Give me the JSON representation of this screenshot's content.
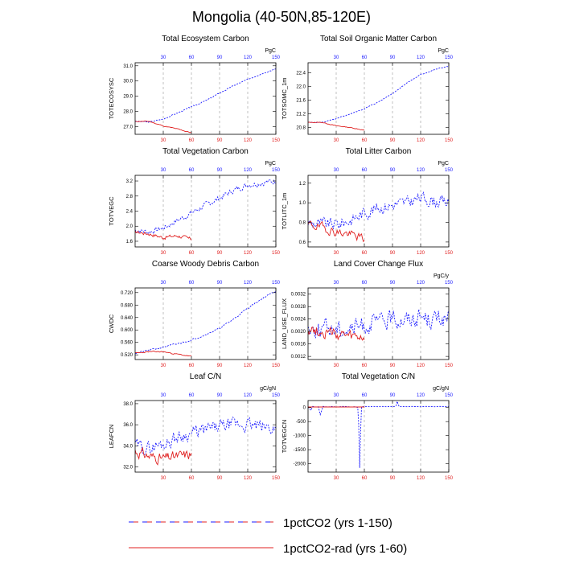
{
  "figure": {
    "title": "Mongolia (40-50N,85-120E)",
    "legend": [
      {
        "label": "1pctCO2 (yrs 1-150)",
        "color": "#1a1aff",
        "style": "dashed"
      },
      {
        "label": "1pctCO2-rad (yrs 1-60)",
        "color": "#e02020",
        "style": "solid"
      }
    ]
  },
  "chart_data": [
    {
      "type": "line",
      "title": "Total Ecosystem Carbon",
      "ylabel": "TOTECOSYSC",
      "unit": "PgC",
      "xlim": [
        0,
        150
      ],
      "ylim": [
        26.5,
        31.2
      ],
      "yticks": [
        27.0,
        28.0,
        29.0,
        30.0,
        31.0
      ],
      "ytick_fmt": 1,
      "xticks_bottom": [
        30,
        60,
        90,
        120,
        150
      ],
      "xticks_top": [
        30,
        60,
        90,
        120,
        150
      ],
      "grid_x": [
        30,
        60,
        90,
        120
      ],
      "series": [
        {
          "color": "#1a1aff",
          "dash": "2,1.5",
          "noise": 0.06,
          "seed": 3,
          "x": [
            0,
            15,
            30,
            45,
            60,
            75,
            90,
            105,
            120,
            135,
            150
          ],
          "y": [
            27.35,
            27.3,
            27.5,
            27.9,
            28.3,
            28.7,
            29.2,
            29.7,
            30.1,
            30.5,
            30.8
          ]
        },
        {
          "color": "#e02020",
          "dash": "",
          "noise": 0.05,
          "seed": 11,
          "x": [
            0,
            15,
            30,
            45,
            60
          ],
          "y": [
            27.35,
            27.35,
            27.05,
            26.85,
            26.6
          ]
        }
      ]
    },
    {
      "type": "line",
      "title": "Total Soil Organic Matter Carbon",
      "ylabel": "TOTSOMC_1m",
      "unit": "PgC",
      "xlim": [
        0,
        150
      ],
      "ylim": [
        20.6,
        22.7
      ],
      "yticks": [
        20.8,
        21.2,
        21.6,
        22.0,
        22.4
      ],
      "ytick_fmt": 1,
      "xticks_bottom": [
        30,
        60,
        90,
        120,
        150
      ],
      "xticks_top": [
        30,
        60,
        90,
        120,
        150
      ],
      "grid_x": [
        30,
        60,
        90,
        120
      ],
      "series": [
        {
          "color": "#1a1aff",
          "dash": "2,1.5",
          "noise": 0.02,
          "seed": 5,
          "x": [
            0,
            15,
            30,
            45,
            60,
            75,
            90,
            105,
            120,
            135,
            150
          ],
          "y": [
            20.95,
            20.95,
            21.05,
            21.2,
            21.35,
            21.55,
            21.8,
            22.1,
            22.35,
            22.5,
            22.6
          ]
        },
        {
          "color": "#e02020",
          "dash": "",
          "noise": 0.015,
          "seed": 13,
          "x": [
            0,
            15,
            30,
            45,
            60
          ],
          "y": [
            20.95,
            20.95,
            20.85,
            20.8,
            20.72
          ]
        }
      ]
    },
    {
      "type": "line",
      "title": "Total Vegetation Carbon",
      "ylabel": "TOTVEGC",
      "unit": "PgC",
      "xlim": [
        0,
        150
      ],
      "ylim": [
        1.45,
        3.35
      ],
      "yticks": [
        1.6,
        2.0,
        2.4,
        2.8,
        3.2
      ],
      "ytick_fmt": 1,
      "xticks_bottom": [
        30,
        60,
        90,
        120,
        150
      ],
      "xticks_top": [
        30,
        60,
        90,
        120,
        150
      ],
      "grid_x": [
        30,
        60,
        90,
        120
      ],
      "series": [
        {
          "color": "#1a1aff",
          "dash": "2,1.5",
          "noise": 0.12,
          "seed": 7,
          "x": [
            0,
            15,
            30,
            45,
            60,
            75,
            90,
            105,
            120,
            135,
            150
          ],
          "y": [
            1.9,
            1.85,
            1.95,
            2.15,
            2.35,
            2.55,
            2.75,
            2.95,
            3.1,
            3.15,
            3.2
          ]
        },
        {
          "color": "#e02020",
          "dash": "",
          "noise": 0.08,
          "seed": 17,
          "x": [
            0,
            15,
            30,
            45,
            60
          ],
          "y": [
            1.85,
            1.8,
            1.7,
            1.75,
            1.65
          ]
        }
      ]
    },
    {
      "type": "line",
      "title": "Total Litter Carbon",
      "ylabel": "TOTLITC_1m",
      "unit": "PgC",
      "xlim": [
        0,
        150
      ],
      "ylim": [
        0.55,
        1.28
      ],
      "yticks": [
        0.6,
        0.8,
        1.0,
        1.2
      ],
      "ytick_fmt": 1,
      "xticks_bottom": [
        30,
        60,
        90,
        120,
        150
      ],
      "xticks_top": [
        30,
        60,
        90,
        120,
        150
      ],
      "grid_x": [
        30,
        60,
        90,
        120
      ],
      "series": [
        {
          "color": "#1a1aff",
          "dash": "2,1.5",
          "noise": 0.1,
          "seed": 9,
          "x": [
            0,
            15,
            30,
            45,
            60,
            75,
            90,
            105,
            120,
            135,
            150
          ],
          "y": [
            0.8,
            0.78,
            0.78,
            0.82,
            0.9,
            0.95,
            0.98,
            1.0,
            1.05,
            1.02,
            1.0
          ]
        },
        {
          "color": "#e02020",
          "dash": "",
          "noise": 0.07,
          "seed": 19,
          "x": [
            0,
            15,
            30,
            45,
            60
          ],
          "y": [
            0.78,
            0.75,
            0.7,
            0.68,
            0.63
          ]
        }
      ]
    },
    {
      "type": "line",
      "title": "Coarse Woody Debris Carbon",
      "ylabel": "CWDC",
      "unit": "",
      "xlim": [
        0,
        150
      ],
      "ylim": [
        0.505,
        0.735
      ],
      "yticks": [
        0.52,
        0.56,
        0.6,
        0.64,
        0.68,
        0.72
      ],
      "ytick_fmt": 3,
      "xticks_bottom": [
        30,
        60,
        90,
        120,
        150
      ],
      "xticks_top": [
        30,
        60,
        90,
        120,
        150
      ],
      "grid_x": [
        30,
        60,
        90,
        120
      ],
      "series": [
        {
          "color": "#1a1aff",
          "dash": "2,1.5",
          "noise": 0.004,
          "seed": 21,
          "x": [
            0,
            15,
            30,
            45,
            60,
            75,
            90,
            105,
            120,
            135,
            150
          ],
          "y": [
            0.525,
            0.535,
            0.545,
            0.555,
            0.568,
            0.585,
            0.605,
            0.635,
            0.67,
            0.7,
            0.725
          ]
        },
        {
          "color": "#e02020",
          "dash": "",
          "noise": 0.003,
          "seed": 23,
          "x": [
            0,
            15,
            30,
            45,
            60
          ],
          "y": [
            0.525,
            0.53,
            0.53,
            0.522,
            0.515
          ]
        }
      ]
    },
    {
      "type": "line",
      "title": "Land Cover Change Flux",
      "ylabel": "LAND_USE_FLUX",
      "unit": "PgC/y",
      "xlim": [
        0,
        150
      ],
      "ylim": [
        0.0011,
        0.0034
      ],
      "yticks": [
        0.0012,
        0.0016,
        0.002,
        0.0024,
        0.0028,
        0.0032
      ],
      "ytick_fmt": 4,
      "xticks_bottom": [
        30,
        60,
        90,
        120,
        150
      ],
      "xticks_top": [
        30,
        60,
        90,
        120,
        150
      ],
      "grid_x": [
        30,
        60,
        90,
        120
      ],
      "series": [
        {
          "color": "#1a1aff",
          "dash": "2,1.5",
          "noise": 0.00045,
          "seed": 25,
          "x": [
            0,
            15,
            30,
            45,
            60,
            75,
            90,
            105,
            120,
            135,
            150
          ],
          "y": [
            0.0021,
            0.0021,
            0.0021,
            0.0021,
            0.0022,
            0.0023,
            0.0024,
            0.0024,
            0.0025,
            0.0024,
            0.0024
          ]
        },
        {
          "color": "#e02020",
          "dash": "",
          "noise": 0.0003,
          "seed": 27,
          "x": [
            0,
            15,
            30,
            45,
            60
          ],
          "y": [
            0.0021,
            0.002,
            0.0019,
            0.0018,
            0.0018
          ]
        }
      ]
    },
    {
      "type": "line",
      "title": "Leaf C/N",
      "ylabel": "LEAFCN",
      "unit": "gC/gN",
      "xlim": [
        0,
        150
      ],
      "ylim": [
        31.5,
        38.3
      ],
      "yticks": [
        32.0,
        34.0,
        36.0,
        38.0
      ],
      "ytick_fmt": 1,
      "xticks_bottom": [
        30,
        60,
        90,
        120,
        150
      ],
      "xticks_top": [
        30,
        60,
        90,
        120,
        150
      ],
      "grid_x": [
        30,
        60,
        90,
        120
      ],
      "series": [
        {
          "color": "#1a1aff",
          "dash": "2,1.5",
          "noise": 1.0,
          "seed": 29,
          "x": [
            0,
            15,
            30,
            45,
            60,
            75,
            90,
            105,
            120,
            135,
            150
          ],
          "y": [
            34.0,
            33.8,
            34.2,
            34.8,
            35.2,
            35.5,
            35.8,
            36.0,
            36.0,
            35.8,
            35.6
          ]
        },
        {
          "color": "#e02020",
          "dash": "",
          "noise": 0.8,
          "seed": 31,
          "x": [
            0,
            15,
            30,
            45,
            60
          ],
          "y": [
            33.5,
            33.0,
            32.8,
            33.0,
            33.2
          ]
        }
      ]
    },
    {
      "type": "line",
      "title": "Total Vegetation C/N",
      "ylabel": "TOTVEGCN",
      "unit": "gC/gN",
      "xlim": [
        0,
        150
      ],
      "ylim": [
        -2300,
        250
      ],
      "yticks": [
        -2000,
        -1500,
        -1000,
        -500,
        0
      ],
      "ytick_fmt": 0,
      "xticks_bottom": [
        30,
        60,
        90,
        120,
        150
      ],
      "xticks_top": [
        30,
        60,
        90,
        120,
        150
      ],
      "grid_x": [
        30,
        60,
        90,
        120
      ],
      "series": [
        {
          "color": "#1a1aff",
          "dash": "2,1.5",
          "noise": 0,
          "x": [
            0,
            3,
            5,
            8,
            11,
            13,
            16,
            19,
            22,
            25,
            28,
            31,
            34,
            37,
            40,
            43,
            46,
            49,
            51,
            53,
            54,
            55,
            56,
            57,
            58,
            60,
            63,
            66,
            69,
            72,
            75,
            78,
            81,
            84,
            87,
            90,
            93,
            94,
            95,
            96,
            97,
            98,
            100,
            103,
            106,
            110,
            115,
            120,
            125,
            130,
            135,
            140,
            145,
            150
          ],
          "y": [
            30,
            -100,
            40,
            20,
            30,
            -250,
            40,
            30,
            25,
            35,
            30,
            25,
            30,
            40,
            35,
            30,
            20,
            30,
            25,
            0,
            -600,
            -2150,
            -900,
            20,
            30,
            40,
            35,
            30,
            40,
            35,
            30,
            40,
            35,
            30,
            40,
            35,
            40,
            80,
            220,
            120,
            40,
            30,
            40,
            35,
            30,
            40,
            35,
            30,
            40,
            35,
            30,
            40,
            35,
            40
          ]
        },
        {
          "color": "#e02020",
          "dash": "",
          "noise": 0,
          "x": [
            0,
            10,
            20,
            30,
            40,
            50,
            60
          ],
          "y": [
            20,
            20,
            20,
            20,
            20,
            20,
            20
          ]
        }
      ]
    }
  ]
}
